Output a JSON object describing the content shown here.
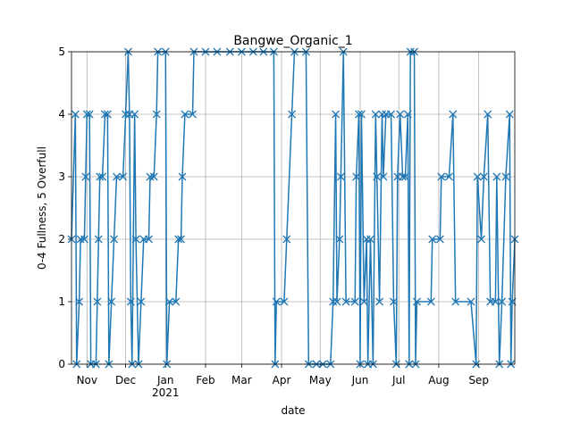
{
  "chart_data": {
    "type": "line",
    "title": "Bangwe_Organic_1",
    "xlabel": "date",
    "ylabel": "0-4 Fullness, 5 Overfull",
    "color": "#1f77b4",
    "marker": "x",
    "grid": true,
    "xlim": [
      "2020-10-20",
      "2021-09-29"
    ],
    "xticks": [
      {
        "value": "2020-11-01",
        "label": "Nov"
      },
      {
        "value": "2020-12-01",
        "label": "Dec"
      },
      {
        "value": "2021-01-01",
        "label": "Jan"
      },
      {
        "value": "2021-02-01",
        "label": "Feb"
      },
      {
        "value": "2021-03-01",
        "label": "Mar"
      },
      {
        "value": "2021-04-01",
        "label": "Apr"
      },
      {
        "value": "2021-05-01",
        "label": "May"
      },
      {
        "value": "2021-06-01",
        "label": "Jun"
      },
      {
        "value": "2021-07-01",
        "label": "Jul"
      },
      {
        "value": "2021-08-01",
        "label": "Aug"
      },
      {
        "value": "2021-09-01",
        "label": "Sep"
      }
    ],
    "year_label": "2021",
    "ylim": [
      0,
      5
    ],
    "yticks": [
      0,
      1,
      2,
      3,
      4,
      5
    ],
    "x": [
      "2020-10-20",
      "2020-10-23",
      "2020-10-24",
      "2020-10-26",
      "2020-10-27",
      "2020-10-30",
      "2020-10-31",
      "2020-11-01",
      "2020-11-03",
      "2020-11-04",
      "2020-11-08",
      "2020-11-09",
      "2020-11-10",
      "2020-11-11",
      "2020-11-13",
      "2020-11-15",
      "2020-11-17",
      "2020-11-18",
      "2020-11-20",
      "2020-11-22",
      "2020-11-24",
      "2020-11-29",
      "2020-12-01",
      "2020-12-03",
      "2020-12-04",
      "2020-12-05",
      "2020-12-06",
      "2020-12-08",
      "2020-12-09",
      "2020-12-11",
      "2020-12-13",
      "2020-12-15",
      "2020-12-19",
      "2020-12-20",
      "2020-12-23",
      "2020-12-25",
      "2020-12-26",
      "2021-01-01",
      "2021-01-02",
      "2021-01-04",
      "2021-01-09",
      "2021-01-11",
      "2021-01-13",
      "2021-01-14",
      "2021-01-16",
      "2021-01-22",
      "2021-01-23",
      "2021-02-01",
      "2021-02-10",
      "2021-02-20",
      "2021-03-01",
      "2021-03-10",
      "2021-03-18",
      "2021-03-26",
      "2021-03-27",
      "2021-03-28",
      "2021-04-03",
      "2021-04-05",
      "2021-04-09",
      "2021-04-11",
      "2021-04-20",
      "2021-04-22",
      "2021-04-28",
      "2021-05-03",
      "2021-05-09",
      "2021-05-11",
      "2021-05-13",
      "2021-05-14",
      "2021-05-16",
      "2021-05-17",
      "2021-05-19",
      "2021-05-21",
      "2021-05-28",
      "2021-05-29",
      "2021-05-31",
      "2021-06-01",
      "2021-06-02",
      "2021-06-04",
      "2021-06-06",
      "2021-06-07",
      "2021-06-09",
      "2021-06-11",
      "2021-06-13",
      "2021-06-14",
      "2021-06-16",
      "2021-06-18",
      "2021-06-19",
      "2021-06-21",
      "2021-06-25",
      "2021-06-27",
      "2021-06-29",
      "2021-06-30",
      "2021-07-02",
      "2021-07-04",
      "2021-07-06",
      "2021-07-08",
      "2021-07-09",
      "2021-07-10",
      "2021-07-13",
      "2021-07-14",
      "2021-07-15",
      "2021-07-26",
      "2021-07-27",
      "2021-08-02",
      "2021-08-03",
      "2021-08-09",
      "2021-08-12",
      "2021-08-14",
      "2021-08-26",
      "2021-08-30",
      "2021-08-31",
      "2021-09-03",
      "2021-09-05",
      "2021-09-08",
      "2021-09-10",
      "2021-09-14",
      "2021-09-15",
      "2021-09-17",
      "2021-09-19",
      "2021-09-22",
      "2021-09-25",
      "2021-09-26",
      "2021-09-27",
      "2021-09-29"
    ],
    "values": [
      2,
      4,
      0,
      1,
      2,
      2,
      3,
      4,
      4,
      0,
      0,
      1,
      2,
      3,
      3,
      4,
      4,
      0,
      1,
      2,
      3,
      3,
      4,
      5,
      4,
      1,
      0,
      4,
      2,
      0,
      1,
      2,
      2,
      3,
      3,
      4,
      5,
      5,
      0,
      1,
      1,
      2,
      2,
      3,
      4,
      4,
      5,
      5,
      5,
      5,
      5,
      5,
      5,
      5,
      0,
      1,
      1,
      2,
      4,
      5,
      5,
      0,
      0,
      0,
      0,
      1,
      4,
      1,
      2,
      3,
      5,
      1,
      1,
      3,
      4,
      0,
      4,
      1,
      2,
      0,
      2,
      0,
      4,
      3,
      1,
      4,
      3,
      4,
      4,
      1,
      0,
      3,
      4,
      3,
      3,
      4,
      0,
      5,
      5,
      0,
      1,
      1,
      2,
      2,
      3,
      3,
      4,
      1,
      1,
      0,
      3,
      2,
      3,
      4,
      1,
      1,
      3,
      0,
      1,
      3,
      4,
      0,
      1,
      2
    ]
  }
}
